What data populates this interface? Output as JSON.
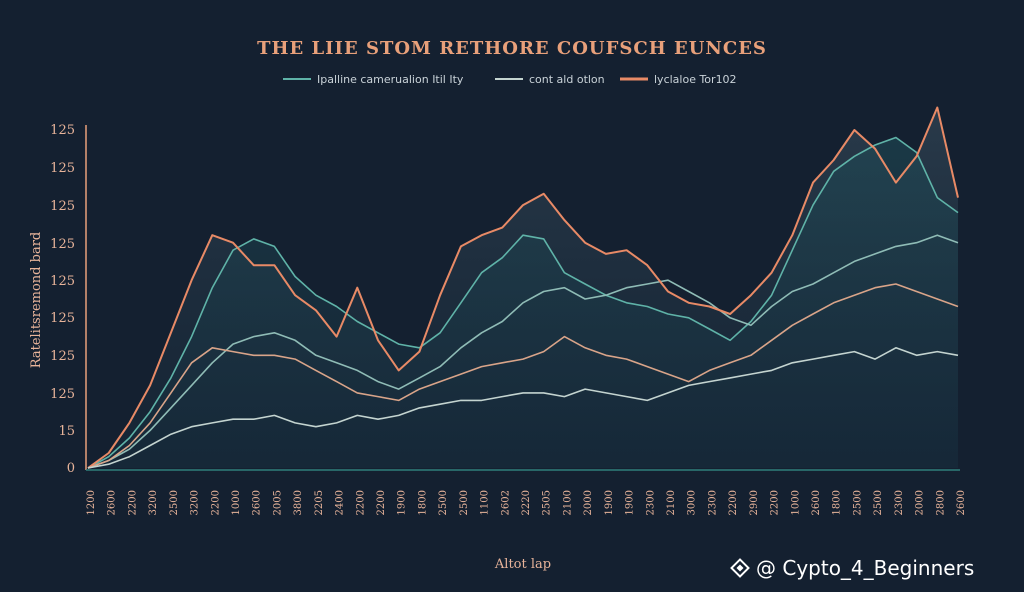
{
  "chart_data": {
    "type": "line",
    "title": "THE LIIE STOM RETHORE COUFSCH EUNCES",
    "xlabel": "Altot lap",
    "ylabel": "Ratelitsremond bard",
    "y_tick_labels": [
      "0",
      "15",
      "125",
      "125",
      "125",
      "125",
      "125",
      "125",
      "125",
      "125"
    ],
    "ylim": [
      0,
      9
    ],
    "x_tick_labels": [
      "1200",
      "2600",
      "2200",
      "3200",
      "2500",
      "3200",
      "2200",
      "1000",
      "2600",
      "2005",
      "3800",
      "2205",
      "2400",
      "2200",
      "2200",
      "1900",
      "1800",
      "2500",
      "2500",
      "1100",
      "2602",
      "2220",
      "2505",
      "2100",
      "2000",
      "1900",
      "1900",
      "2300",
      "2100",
      "3000",
      "2300",
      "2200",
      "2900",
      "2200",
      "1000",
      "2600",
      "1800",
      "2500",
      "2500",
      "2300",
      "2000",
      "2800",
      "2600"
    ],
    "x": [
      0,
      1,
      2,
      3,
      4,
      5,
      6,
      7,
      8,
      9,
      10,
      11,
      12,
      13,
      14,
      15,
      16,
      17,
      18,
      19,
      20,
      21,
      22,
      23,
      24,
      25,
      26,
      27,
      28,
      29,
      30,
      31,
      32,
      33,
      34,
      35,
      36,
      37,
      38,
      39,
      40,
      41,
      42
    ],
    "legend_position": "top",
    "series": [
      {
        "name": "Ipalline camerualion Itil Ity",
        "color": "#5fb3a8",
        "style": "solid",
        "values": [
          0,
          0.3,
          0.8,
          1.5,
          2.4,
          3.5,
          4.8,
          5.8,
          6.1,
          5.9,
          5.1,
          4.6,
          4.3,
          3.9,
          3.6,
          3.3,
          3.2,
          3.6,
          4.4,
          5.2,
          5.6,
          6.2,
          6.1,
          5.2,
          4.9,
          4.6,
          4.4,
          4.3,
          4.1,
          4.0,
          3.7,
          3.4,
          3.9,
          4.6,
          5.8,
          7.0,
          7.9,
          8.3,
          8.6,
          8.8,
          8.4,
          7.2,
          6.8
        ]
      },
      {
        "name": "cont ald otlon",
        "color": "#8fbcb6",
        "style": "solid",
        "values": [
          0,
          0.2,
          0.5,
          1.0,
          1.6,
          2.2,
          2.8,
          3.3,
          3.5,
          3.6,
          3.4,
          3.0,
          2.8,
          2.6,
          2.3,
          2.1,
          2.4,
          2.7,
          3.2,
          3.6,
          3.9,
          4.4,
          4.7,
          4.8,
          4.5,
          4.6,
          4.8,
          4.9,
          5.0,
          4.7,
          4.4,
          4.0,
          3.8,
          4.3,
          4.7,
          4.9,
          5.2,
          5.5,
          5.7,
          5.9,
          6.0,
          6.2,
          6.0
        ]
      },
      {
        "name": "lyclaloe Tor102",
        "color": "#e88a66",
        "style": "solid",
        "values": [
          0,
          0.4,
          1.2,
          2.2,
          3.6,
          5.0,
          6.2,
          6.0,
          5.4,
          5.4,
          4.6,
          4.2,
          3.5,
          4.8,
          3.4,
          2.6,
          3.1,
          4.6,
          5.9,
          6.2,
          6.4,
          7.0,
          7.3,
          6.6,
          6.0,
          5.7,
          5.8,
          5.4,
          4.7,
          4.4,
          4.3,
          4.1,
          4.6,
          5.2,
          6.2,
          7.6,
          8.2,
          9.0,
          8.5,
          7.6,
          8.3,
          9.6,
          7.2
        ]
      },
      {
        "name": "",
        "color": "#d9a489",
        "style": "solid",
        "values": [
          0,
          0.2,
          0.6,
          1.2,
          2.0,
          2.8,
          3.2,
          3.1,
          3.0,
          3.0,
          2.9,
          2.6,
          2.3,
          2.0,
          1.9,
          1.8,
          2.1,
          2.3,
          2.5,
          2.7,
          2.8,
          2.9,
          3.1,
          3.5,
          3.2,
          3.0,
          2.9,
          2.7,
          2.5,
          2.3,
          2.6,
          2.8,
          3.0,
          3.4,
          3.8,
          4.1,
          4.4,
          4.6,
          4.8,
          4.9,
          4.7,
          4.5,
          4.3
        ]
      },
      {
        "name": "",
        "color": "#c4d4d0",
        "style": "solid",
        "values": [
          0,
          0.1,
          0.3,
          0.6,
          0.9,
          1.1,
          1.2,
          1.3,
          1.3,
          1.4,
          1.2,
          1.1,
          1.2,
          1.4,
          1.3,
          1.4,
          1.6,
          1.7,
          1.8,
          1.8,
          1.9,
          2.0,
          2.0,
          1.9,
          2.1,
          2.0,
          1.9,
          1.8,
          2.0,
          2.2,
          2.3,
          2.4,
          2.5,
          2.6,
          2.8,
          2.9,
          3.0,
          3.1,
          2.9,
          3.2,
          3.0,
          3.1,
          3.0
        ]
      }
    ]
  },
  "legend": [
    {
      "label": "Ipalline camerualion Itil Ity",
      "color": "#5fb3a8"
    },
    {
      "label": "cont ald otlon",
      "color": "#c4d4d0"
    },
    {
      "label": "lyclaloe Tor102",
      "color": "#e88a66"
    }
  ],
  "watermark": {
    "text": "@ Cypto_4_Beginners",
    "icon": "diamond-logo-icon"
  }
}
